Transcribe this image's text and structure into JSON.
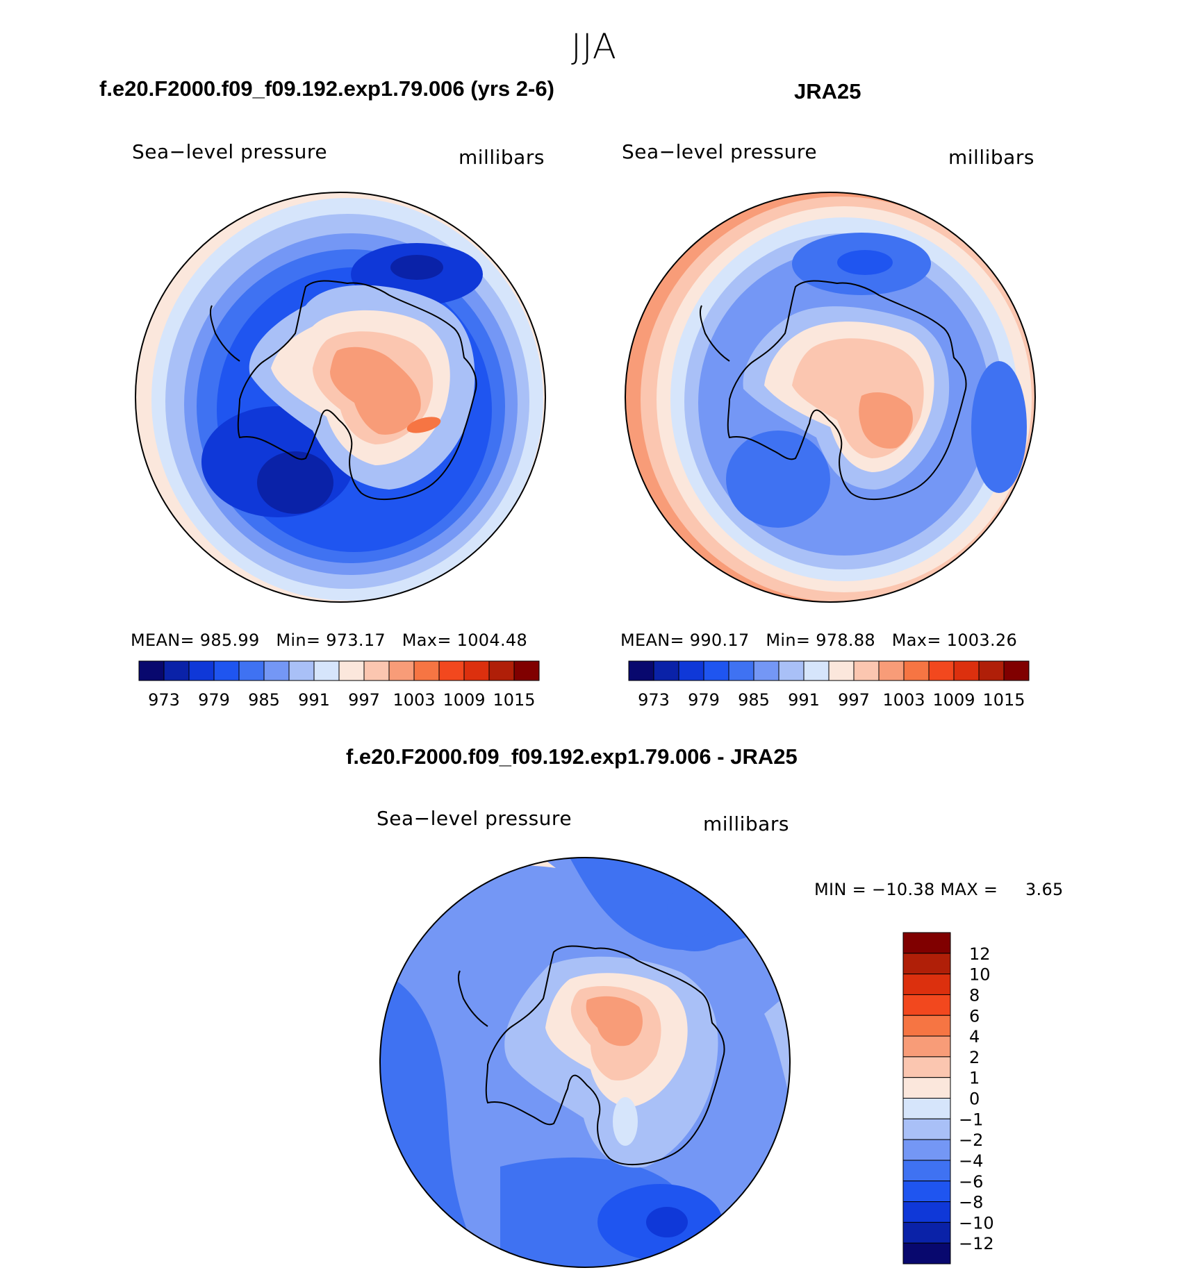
{
  "figure": {
    "title": "JJA"
  },
  "panels": [
    {
      "title": "f.e20.F2000.f09_f09.192.exp1.79.006 (yrs 2-6)",
      "variable": "Sea−level pressure",
      "units": "millibars",
      "stats": {
        "mean_label": "MEAN=",
        "mean": "985.99",
        "min_label": "Min=",
        "min": "973.17",
        "max_label": "Max=",
        "max": "1004.48"
      }
    },
    {
      "title": "JRA25",
      "variable": "Sea−level pressure",
      "units": "millibars",
      "stats": {
        "mean_label": "MEAN=",
        "mean": "990.17",
        "min_label": "Min=",
        "min": "978.88",
        "max_label": "Max=",
        "max": "1003.26"
      }
    },
    {
      "title": "f.e20.F2000.f09_f09.192.exp1.79.006 - JRA25",
      "variable": "Sea−level pressure",
      "units": "millibars",
      "stats": {
        "min_label": "MIN =",
        "min": "−10.38",
        "max_label": "MAX =",
        "max": "3.65"
      }
    }
  ],
  "colorbars": {
    "absolute": {
      "colors": [
        "#08086e",
        "#0a22a8",
        "#0f38d8",
        "#1f55f0",
        "#3f72f2",
        "#7497f5",
        "#a9c0f7",
        "#d6e5fb",
        "#fbe7dc",
        "#fbc6b0",
        "#f89c78",
        "#f67543",
        "#f2481e",
        "#dc300e",
        "#b01f08",
        "#800000"
      ],
      "labels": [
        "973",
        "979",
        "985",
        "991",
        "997",
        "1003",
        "1009",
        "1015"
      ]
    },
    "difference": {
      "colors": [
        "#800000",
        "#b01f08",
        "#dc300e",
        "#f2481e",
        "#f67543",
        "#f89c78",
        "#fbc6b0",
        "#fbe7dc",
        "#d6e5fb",
        "#a9c0f7",
        "#7497f5",
        "#3f72f2",
        "#1f55f0",
        "#0f38d8",
        "#0a22a8",
        "#08086e"
      ],
      "labels": [
        "12",
        "10",
        "8",
        "6",
        "4",
        "2",
        "1",
        "0",
        "−1",
        "−2",
        "−4",
        "−6",
        "−8",
        "−10",
        "−12"
      ]
    }
  },
  "maps": [
    {
      "projection": "south-polar-stereographic",
      "levels": [
        {
          "level": 1003,
          "color": "#fbe7dc"
        },
        {
          "level": 997,
          "color": "#d6e5fb"
        },
        {
          "level": 994,
          "color": "#a9c0f7"
        },
        {
          "level": 991,
          "color": "#7497f5"
        },
        {
          "level": 988,
          "color": "#3f72f2"
        },
        {
          "level": 985,
          "color": "#1f55f0"
        },
        {
          "level": 982,
          "color": "#0f38d8"
        },
        {
          "level": 979,
          "color": "#0a22a8"
        }
      ],
      "interior_colors": [
        "#d6e5fb",
        "#fbe7dc",
        "#fbc6b0",
        "#f89c78",
        "#f67543"
      ]
    },
    {
      "projection": "south-polar-stereographic",
      "levels": [
        {
          "level": 1003,
          "color": "#f89c78"
        },
        {
          "level": 1000,
          "color": "#fbc6b0"
        },
        {
          "level": 997,
          "color": "#fbe7dc"
        },
        {
          "level": 994,
          "color": "#d6e5fb"
        },
        {
          "level": 991,
          "color": "#a9c0f7"
        },
        {
          "level": 988,
          "color": "#7497f5"
        },
        {
          "level": 985,
          "color": "#3f72f2"
        },
        {
          "level": 982,
          "color": "#1f55f0"
        }
      ],
      "interior_colors": [
        "#d6e5fb",
        "#fbe7dc",
        "#fbc6b0",
        "#f89c78"
      ]
    },
    {
      "projection": "south-polar-stereographic",
      "base_color": "#7497f5",
      "interior_colors": [
        "#d6e5fb",
        "#fbe7dc",
        "#fbc6b0",
        "#f89c78"
      ]
    }
  ]
}
